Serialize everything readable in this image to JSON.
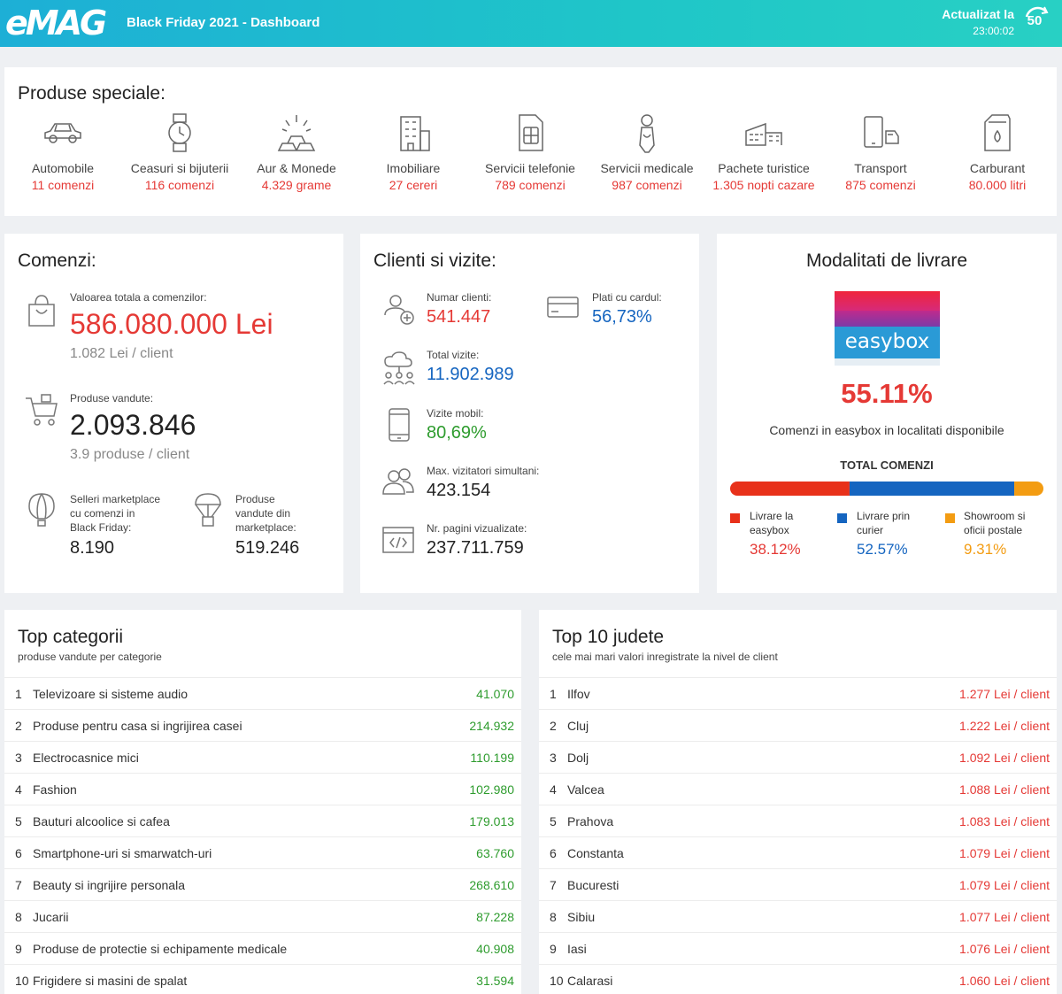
{
  "header": {
    "logo": "eMAG",
    "title": "Black Friday 2021 - Dashboard",
    "updated_label": "Actualizat la",
    "updated_time": "23:00:02",
    "refresh_count": "50"
  },
  "special": {
    "title": "Produse speciale:",
    "items": [
      {
        "name": "Automobile",
        "value": "11 comenzi",
        "icon": "car-icon"
      },
      {
        "name": "Ceasuri si bijuterii",
        "value": "116 comenzi",
        "icon": "watch-icon"
      },
      {
        "name": "Aur & Monede",
        "value": "4.329 grame",
        "icon": "gold-icon"
      },
      {
        "name": "Imobiliare",
        "value": "27 cereri",
        "icon": "building-icon"
      },
      {
        "name": "Servicii telefonie",
        "value": "789 comenzi",
        "icon": "sim-icon"
      },
      {
        "name": "Servicii medicale",
        "value": "987 comenzi",
        "icon": "medical-icon"
      },
      {
        "name": "Pachete turistice",
        "value": "1.305 nopti cazare",
        "icon": "hotel-icon"
      },
      {
        "name": "Transport",
        "value": "875 comenzi",
        "icon": "transport-icon"
      },
      {
        "name": "Carburant",
        "value": "80.000 litri",
        "icon": "fuel-icon"
      }
    ]
  },
  "comenzi": {
    "title": "Comenzi:",
    "total_label": "Valoarea totala a comenzilor:",
    "total_value": "586.080.000 Lei",
    "total_per_client": "1.082 Lei / client",
    "products_label": "Produse vandute:",
    "products_value": "2.093.846",
    "products_per_client": "3.9 produse / client",
    "sellers_label_1": "Selleri marketplace",
    "sellers_label_2": "cu comenzi in",
    "sellers_label_3": "Black Friday:",
    "sellers_value": "8.190",
    "mp_label_1": "Produse",
    "mp_label_2": "vandute din",
    "mp_label_3": "marketplace:",
    "mp_value": "519.246"
  },
  "clienti": {
    "title": "Clienti si vizite:",
    "clients_label": "Numar clienti:",
    "clients_value": "541.447",
    "card_label": "Plati cu cardul:",
    "card_value": "56,73%",
    "visits_label": "Total vizite:",
    "visits_value": "11.902.989",
    "mobile_label": "Vizite mobil:",
    "mobile_value": "80,69%",
    "concurrent_label": "Max. vizitatori simultani:",
    "concurrent_value": "423.154",
    "pages_label": "Nr. pagini vizualizate:",
    "pages_value": "237.711.759"
  },
  "livrare": {
    "title": "Modalitati de livrare",
    "logo_text": "easybox",
    "percent": "55.11%",
    "percent_label": "Comenzi in easybox in localitati disponibile",
    "total_label": "TOTAL COMENZI",
    "segments": [
      {
        "label_1": "Livrare la",
        "label_2": "easybox",
        "value": "38.12%",
        "fraction": 0.3812,
        "color": "#e8311a"
      },
      {
        "label_1": "Livrare prin",
        "label_2": "curier",
        "value": "52.57%",
        "fraction": 0.5257,
        "color": "#1565c0"
      },
      {
        "label_1": "Showroom si",
        "label_2": "oficii postale",
        "value": "9.31%",
        "fraction": 0.0931,
        "color": "#f39c12"
      }
    ]
  },
  "top_categorii": {
    "title": "Top categorii",
    "subtitle": "produse vandute per categorie",
    "rows": [
      {
        "n": "1",
        "name": "Televizoare si sisteme audio",
        "value": "41.070"
      },
      {
        "n": "2",
        "name": "Produse pentru casa si ingrijirea casei",
        "value": "214.932"
      },
      {
        "n": "3",
        "name": "Electrocasnice mici",
        "value": "110.199"
      },
      {
        "n": "4",
        "name": "Fashion",
        "value": "102.980"
      },
      {
        "n": "5",
        "name": "Bauturi alcoolice si cafea",
        "value": "179.013"
      },
      {
        "n": "6",
        "name": "Smartphone-uri si smarwatch-uri",
        "value": "63.760"
      },
      {
        "n": "7",
        "name": "Beauty si ingrijire personala",
        "value": "268.610"
      },
      {
        "n": "8",
        "name": "Jucarii",
        "value": "87.228"
      },
      {
        "n": "9",
        "name": "Produse de protectie si echipamente medicale",
        "value": "40.908"
      },
      {
        "n": "10",
        "name": "Frigidere si masini de spalat",
        "value": "31.594"
      }
    ]
  },
  "top_judete": {
    "title": "Top 10 judete",
    "subtitle": "cele mai mari valori inregistrate la nivel de client",
    "rows": [
      {
        "n": "1",
        "name": "Ilfov",
        "value": "1.277 Lei / client"
      },
      {
        "n": "2",
        "name": "Cluj",
        "value": "1.222 Lei / client"
      },
      {
        "n": "3",
        "name": "Dolj",
        "value": "1.092 Lei / client"
      },
      {
        "n": "4",
        "name": "Valcea",
        "value": "1.088 Lei / client"
      },
      {
        "n": "5",
        "name": "Prahova",
        "value": "1.083 Lei / client"
      },
      {
        "n": "6",
        "name": "Constanta",
        "value": "1.079 Lei / client"
      },
      {
        "n": "7",
        "name": "Bucuresti",
        "value": "1.079 Lei / client"
      },
      {
        "n": "8",
        "name": "Sibiu",
        "value": "1.077 Lei / client"
      },
      {
        "n": "9",
        "name": "Iasi",
        "value": "1.076 Lei / client"
      },
      {
        "n": "10",
        "name": "Calarasi",
        "value": "1.060 Lei / client"
      }
    ]
  }
}
